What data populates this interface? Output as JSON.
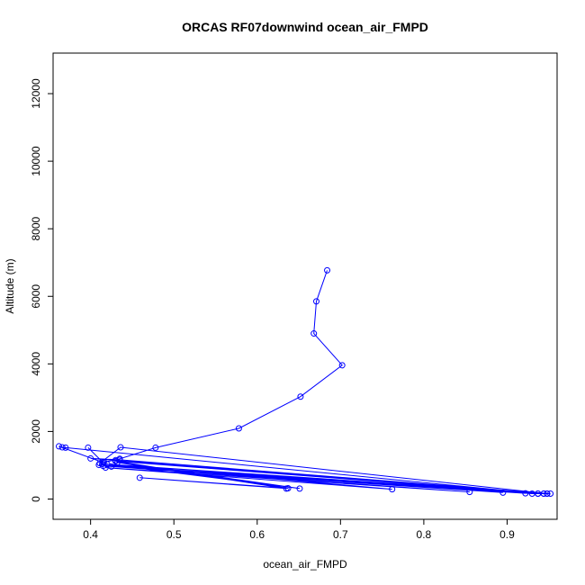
{
  "chart_data": {
    "type": "line",
    "title": "ORCAS RF07downwind ocean_air_FMPD",
    "xlabel": "ocean_air_FMPD",
    "ylabel": "Altitude (m)",
    "xlim": [
      0.355,
      0.96
    ],
    "ylim": [
      -600,
      13200
    ],
    "xticks": [
      0.4,
      0.5,
      0.6,
      0.7,
      0.8,
      0.9
    ],
    "yticks": [
      0,
      2000,
      4000,
      6000,
      8000,
      10000,
      12000
    ],
    "x_tick_labels": [
      "0.4",
      "0.5",
      "0.6",
      "0.7",
      "0.8",
      "0.9"
    ],
    "y_tick_labels": [
      "0",
      "2000",
      "4000",
      "6000",
      "8000",
      "10000",
      "12000"
    ],
    "marker": "open-circle",
    "grid": false,
    "series": [
      {
        "color": "#0000ff",
        "x": [
          0.684,
          0.671,
          0.668,
          0.702,
          0.652,
          0.578,
          0.478,
          0.435,
          0.43,
          0.416,
          0.411,
          0.436,
          0.948,
          0.944,
          0.93,
          0.414,
          0.944,
          0.937,
          0.4,
          0.435,
          0.948,
          0.952,
          0.415,
          0.922,
          0.41,
          0.895,
          0.425,
          0.855,
          0.418,
          0.762,
          0.42,
          0.651,
          0.432,
          0.635,
          0.459,
          0.637,
          0.43,
          0.937,
          0.37,
          0.366,
          0.362,
          0.415,
          0.397
        ],
        "y": [
          6770,
          5850,
          4900,
          3960,
          3030,
          2090,
          1520,
          1190,
          1150,
          1100,
          1060,
          1530,
          160,
          160,
          160,
          1040,
          160,
          160,
          1200,
          1160,
          160,
          160,
          980,
          170,
          1010,
          190,
          960,
          210,
          930,
          290,
          1030,
          310,
          1080,
          310,
          630,
          320,
          1120,
          160,
          1520,
          1530,
          1560,
          1080,
          1520
        ]
      }
    ]
  }
}
